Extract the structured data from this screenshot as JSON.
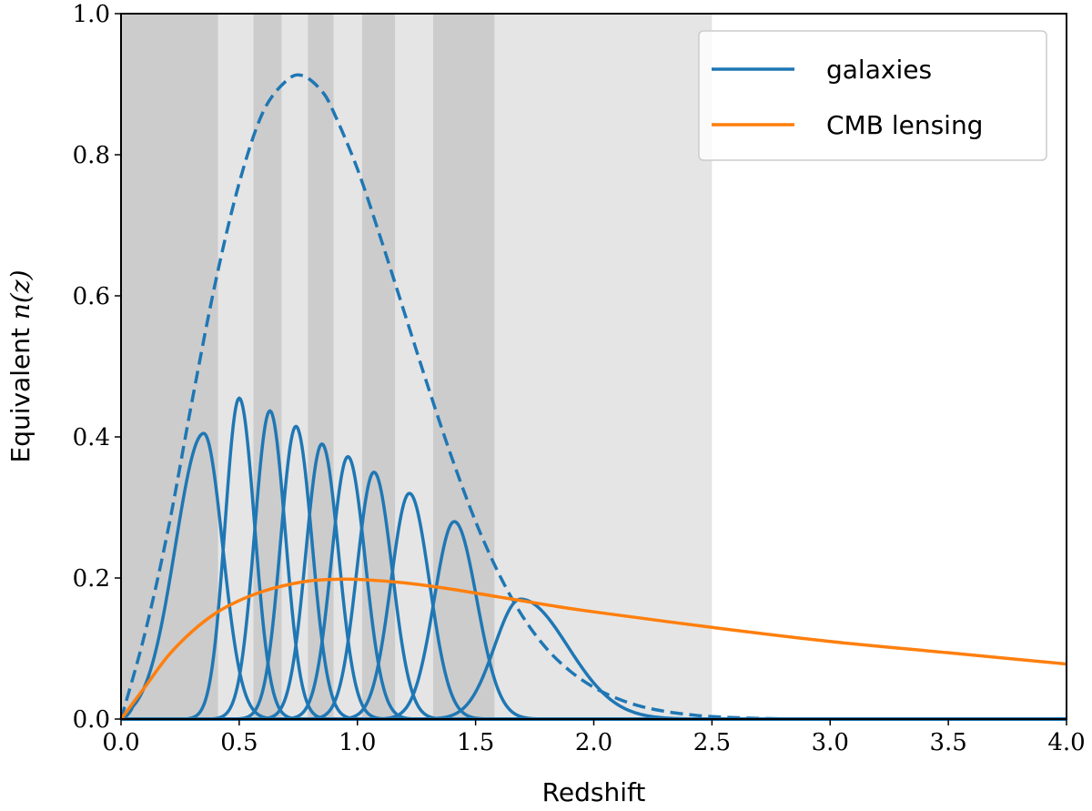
{
  "chart_data": {
    "type": "line",
    "title": "",
    "xlabel": "Redshift",
    "ylabel_text": "Equivalent ",
    "ylabel_math": "n(z)",
    "xlim": [
      0,
      4
    ],
    "ylim": [
      0,
      1
    ],
    "xticks": [
      "0.0",
      "0.5",
      "1.0",
      "1.5",
      "2.0",
      "2.5",
      "3.0",
      "3.5",
      "4.0"
    ],
    "yticks": [
      "0.0",
      "0.2",
      "0.4",
      "0.6",
      "0.8",
      "1.0"
    ],
    "legend_position": "top-right",
    "colors": {
      "galaxies": "#1f77b4",
      "cmb": "#ff7f0e",
      "band_dark": "#cccccc",
      "band_light": "#e5e5e5"
    },
    "bins": [
      {
        "zmin": 0.0,
        "zmax": 0.41,
        "shade": "dark"
      },
      {
        "zmin": 0.41,
        "zmax": 0.56,
        "shade": "light"
      },
      {
        "zmin": 0.56,
        "zmax": 0.68,
        "shade": "dark"
      },
      {
        "zmin": 0.68,
        "zmax": 0.79,
        "shade": "light"
      },
      {
        "zmin": 0.79,
        "zmax": 0.9,
        "shade": "dark"
      },
      {
        "zmin": 0.9,
        "zmax": 1.02,
        "shade": "light"
      },
      {
        "zmin": 1.02,
        "zmax": 1.16,
        "shade": "dark"
      },
      {
        "zmin": 1.16,
        "zmax": 1.32,
        "shade": "light"
      },
      {
        "zmin": 1.32,
        "zmax": 1.58,
        "shade": "dark"
      },
      {
        "zmin": 1.58,
        "zmax": 2.5,
        "shade": "light"
      }
    ],
    "series": [
      {
        "name": "galaxies",
        "role": "legend"
      },
      {
        "name": "CMB lensing",
        "role": "legend"
      }
    ],
    "galaxy_total_dashed": {
      "x": [
        0.0,
        0.1,
        0.2,
        0.3,
        0.4,
        0.5,
        0.6,
        0.7,
        0.77,
        0.85,
        0.9,
        1.0,
        1.1,
        1.2,
        1.3,
        1.4,
        1.5,
        1.6,
        1.7,
        1.8,
        1.9,
        2.0,
        2.1,
        2.2,
        2.3,
        2.4,
        2.5,
        2.7,
        3.0,
        4.0
      ],
      "y": [
        0.0,
        0.12,
        0.27,
        0.45,
        0.62,
        0.76,
        0.86,
        0.905,
        0.912,
        0.89,
        0.86,
        0.78,
        0.68,
        0.575,
        0.47,
        0.37,
        0.28,
        0.205,
        0.145,
        0.1,
        0.068,
        0.045,
        0.029,
        0.018,
        0.011,
        0.0065,
        0.0035,
        0.001,
        0.0,
        0.0
      ]
    },
    "galaxy_bins": [
      {
        "peak_z": 0.35,
        "peak_n": 0.405,
        "sigma_left": 0.12,
        "sigma_right": 0.08
      },
      {
        "peak_z": 0.5,
        "peak_n": 0.455,
        "sigma_left": 0.06,
        "sigma_right": 0.065
      },
      {
        "peak_z": 0.63,
        "peak_n": 0.437,
        "sigma_left": 0.065,
        "sigma_right": 0.065
      },
      {
        "peak_z": 0.74,
        "peak_n": 0.415,
        "sigma_left": 0.065,
        "sigma_right": 0.068
      },
      {
        "peak_z": 0.85,
        "peak_n": 0.39,
        "sigma_left": 0.068,
        "sigma_right": 0.07
      },
      {
        "peak_z": 0.96,
        "peak_n": 0.372,
        "sigma_left": 0.07,
        "sigma_right": 0.073
      },
      {
        "peak_z": 1.07,
        "peak_n": 0.35,
        "sigma_left": 0.072,
        "sigma_right": 0.077
      },
      {
        "peak_z": 1.22,
        "peak_n": 0.32,
        "sigma_left": 0.078,
        "sigma_right": 0.085
      },
      {
        "peak_z": 1.41,
        "peak_n": 0.28,
        "sigma_left": 0.085,
        "sigma_right": 0.095
      },
      {
        "peak_z": 1.69,
        "peak_n": 0.17,
        "sigma_left": 0.11,
        "sigma_right": 0.2
      }
    ],
    "cmb_lensing": {
      "x": [
        0.0,
        0.1,
        0.2,
        0.3,
        0.4,
        0.5,
        0.6,
        0.7,
        0.8,
        0.9,
        1.0,
        1.2,
        1.4,
        1.6,
        1.8,
        2.0,
        2.5,
        3.0,
        3.5,
        4.0
      ],
      "y": [
        0.0,
        0.045,
        0.09,
        0.124,
        0.15,
        0.168,
        0.181,
        0.19,
        0.196,
        0.198,
        0.198,
        0.193,
        0.184,
        0.173,
        0.162,
        0.152,
        0.13,
        0.11,
        0.094,
        0.078
      ]
    }
  }
}
